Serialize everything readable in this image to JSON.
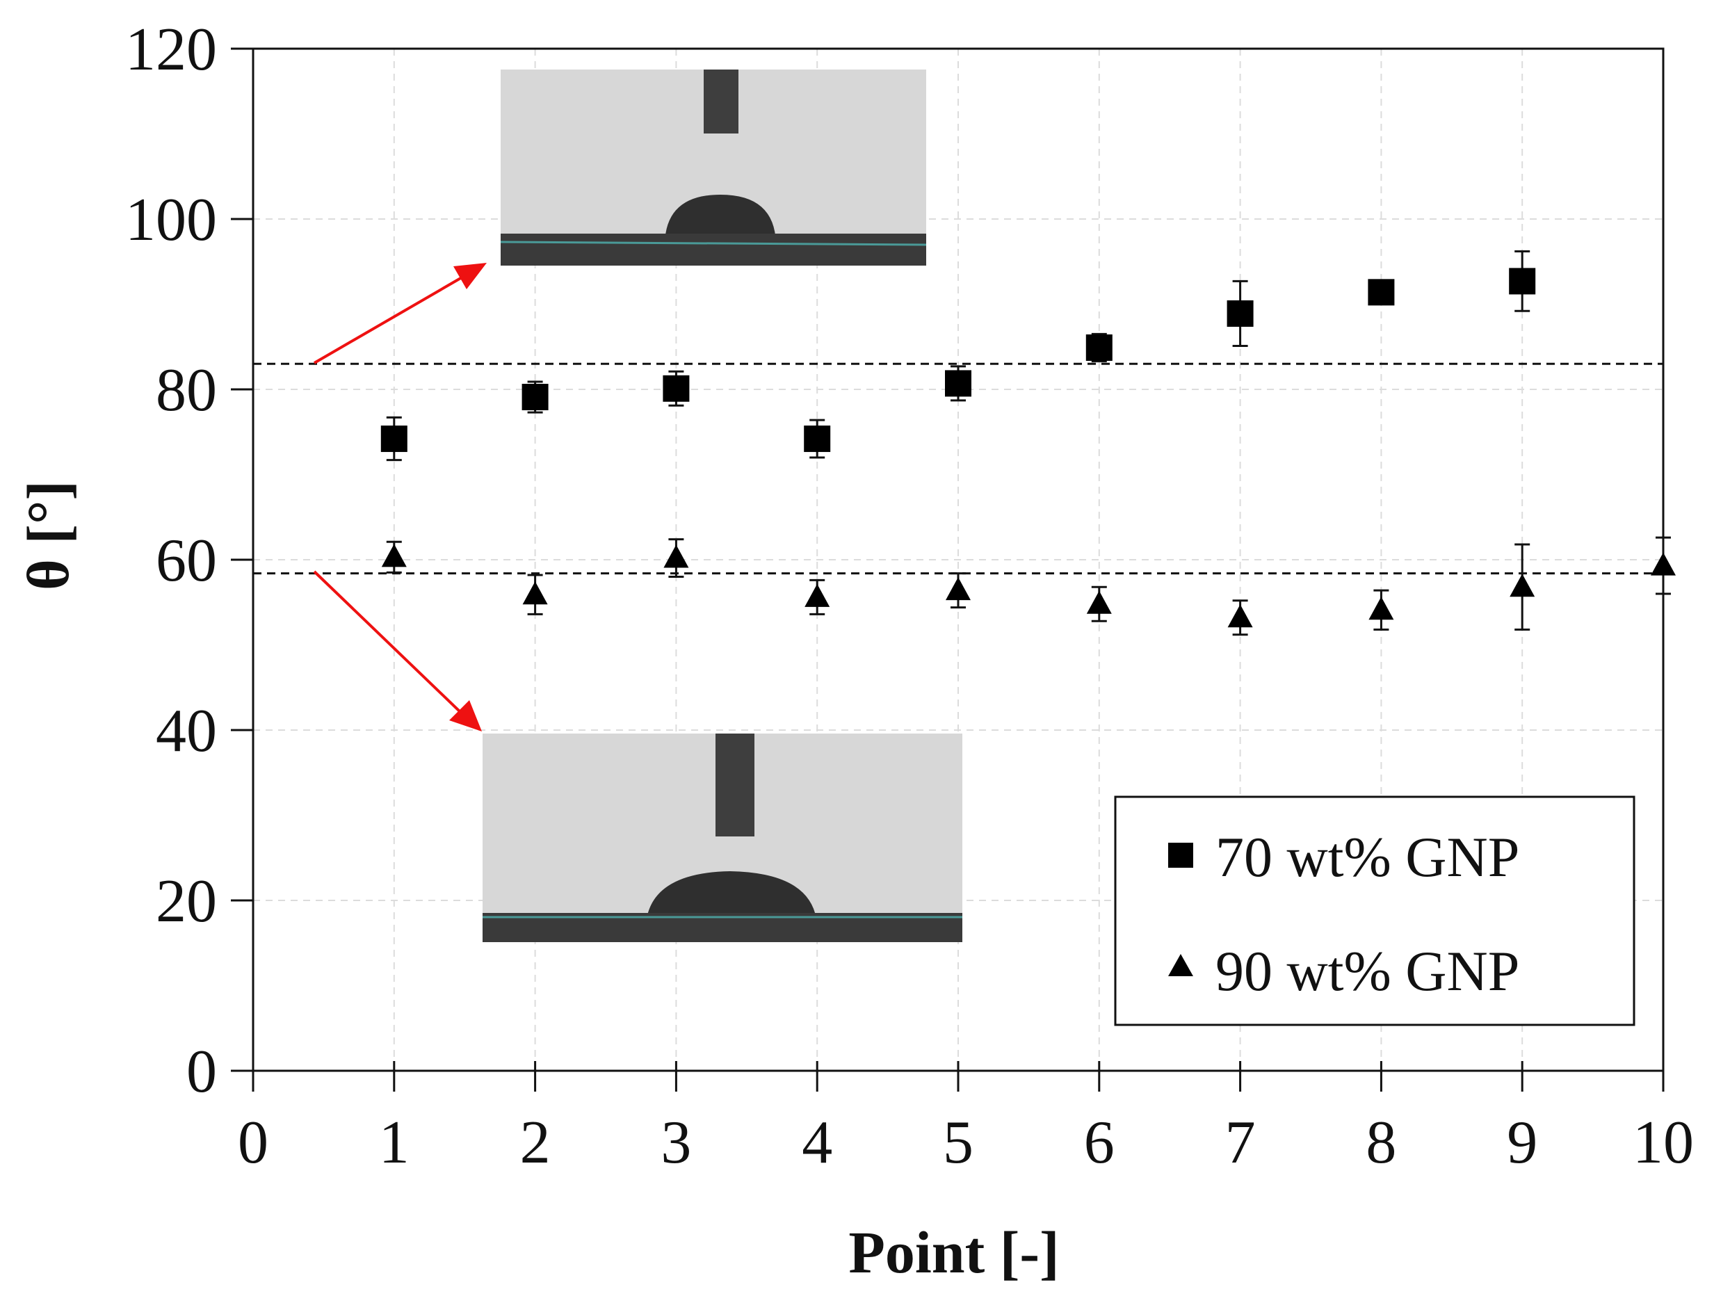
{
  "chart_data": {
    "type": "scatter",
    "xlabel": "Point [-]",
    "ylabel": "θ [°]",
    "xlim": [
      0,
      10
    ],
    "ylim": [
      0,
      120
    ],
    "xticks": [
      "0",
      "1",
      "2",
      "3",
      "4",
      "5",
      "6",
      "7",
      "8",
      "9",
      "10"
    ],
    "yticks": [
      "0",
      "20",
      "40",
      "60",
      "80",
      "100",
      "120"
    ],
    "grid": "dashed",
    "legend_position": "bottom-right",
    "series": [
      {
        "name": "70 wt% GNP",
        "marker": "square",
        "color": "#000000",
        "x": [
          1,
          2,
          3,
          4,
          5,
          6,
          7,
          8,
          9
        ],
        "y": [
          74.2,
          79.1,
          80.1,
          74.2,
          80.7,
          84.9,
          88.9,
          91.4,
          92.7
        ],
        "yerr": [
          2.5,
          1.8,
          2.0,
          2.2,
          2.0,
          1.6,
          3.8,
          1.2,
          3.5
        ]
      },
      {
        "name": "90 wt% GNP",
        "marker": "triangle",
        "color": "#000000",
        "x": [
          1,
          2,
          3,
          4,
          5,
          6,
          7,
          8,
          9,
          10
        ],
        "y": [
          60.3,
          55.9,
          60.2,
          55.6,
          56.4,
          54.8,
          53.2,
          54.1,
          56.8,
          59.3
        ],
        "yerr": [
          1.8,
          2.3,
          2.2,
          2.0,
          2.0,
          2.0,
          2.0,
          2.3,
          5.0,
          3.3
        ]
      }
    ],
    "reference_lines": [
      {
        "y": 83.0,
        "style": "dashed"
      },
      {
        "y": 58.4,
        "style": "dashed"
      }
    ],
    "annotation_color": "#ee1111",
    "inset_colors": {
      "background": "#d7d7d7",
      "needle": "#3e3e3e",
      "droplet": "#2f2f2f",
      "substrate": "#3a3a3a",
      "baseline": "#4a9a98"
    }
  }
}
